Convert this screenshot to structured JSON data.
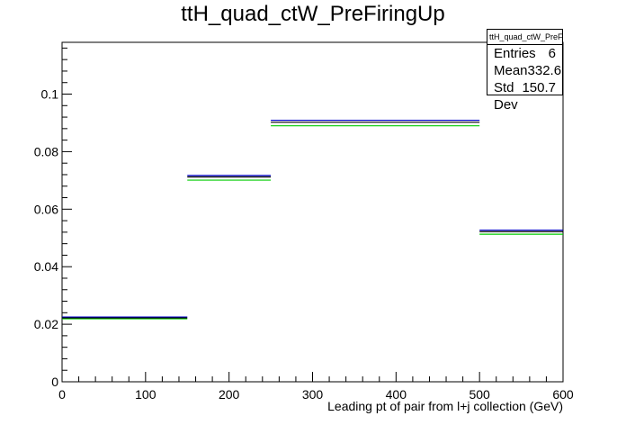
{
  "title": "ttH_quad_ctW_PreFiringUp",
  "stats": {
    "name": "ttH_quad_ctW_PreFiringUp",
    "rows": [
      {
        "label": "Entries",
        "value": "6"
      },
      {
        "label": "Mean",
        "value": "332.6"
      },
      {
        "label": "Std Dev",
        "value": "150.7"
      }
    ]
  },
  "chart_data": {
    "type": "bar",
    "title": "ttH_quad_ctW_PreFiringUp",
    "xlabel": "Leading pt of pair from l+j collection (GeV)",
    "ylabel": "",
    "xlim": [
      0,
      600
    ],
    "ylim": [
      0,
      0.118
    ],
    "xticks": [
      0,
      100,
      200,
      300,
      400,
      500,
      600
    ],
    "yticks": [
      0,
      0.02,
      0.04,
      0.06,
      0.08,
      0.1
    ],
    "ytick_labels": [
      "0",
      "0.02",
      "0.04",
      "0.06",
      "0.08",
      "0.1"
    ],
    "bin_edges": [
      0,
      150,
      250,
      500,
      600
    ],
    "series": [
      {
        "color": "#000000",
        "values": [
          0.0222,
          0.0712,
          0.0902,
          0.0522
        ]
      },
      {
        "color": "#0000cc",
        "values": [
          0.0222,
          0.0714,
          0.0906,
          0.0524
        ]
      },
      {
        "color": "#00cc00",
        "values": [
          0.0222,
          0.0704,
          0.0893,
          0.0516
        ]
      }
    ]
  }
}
